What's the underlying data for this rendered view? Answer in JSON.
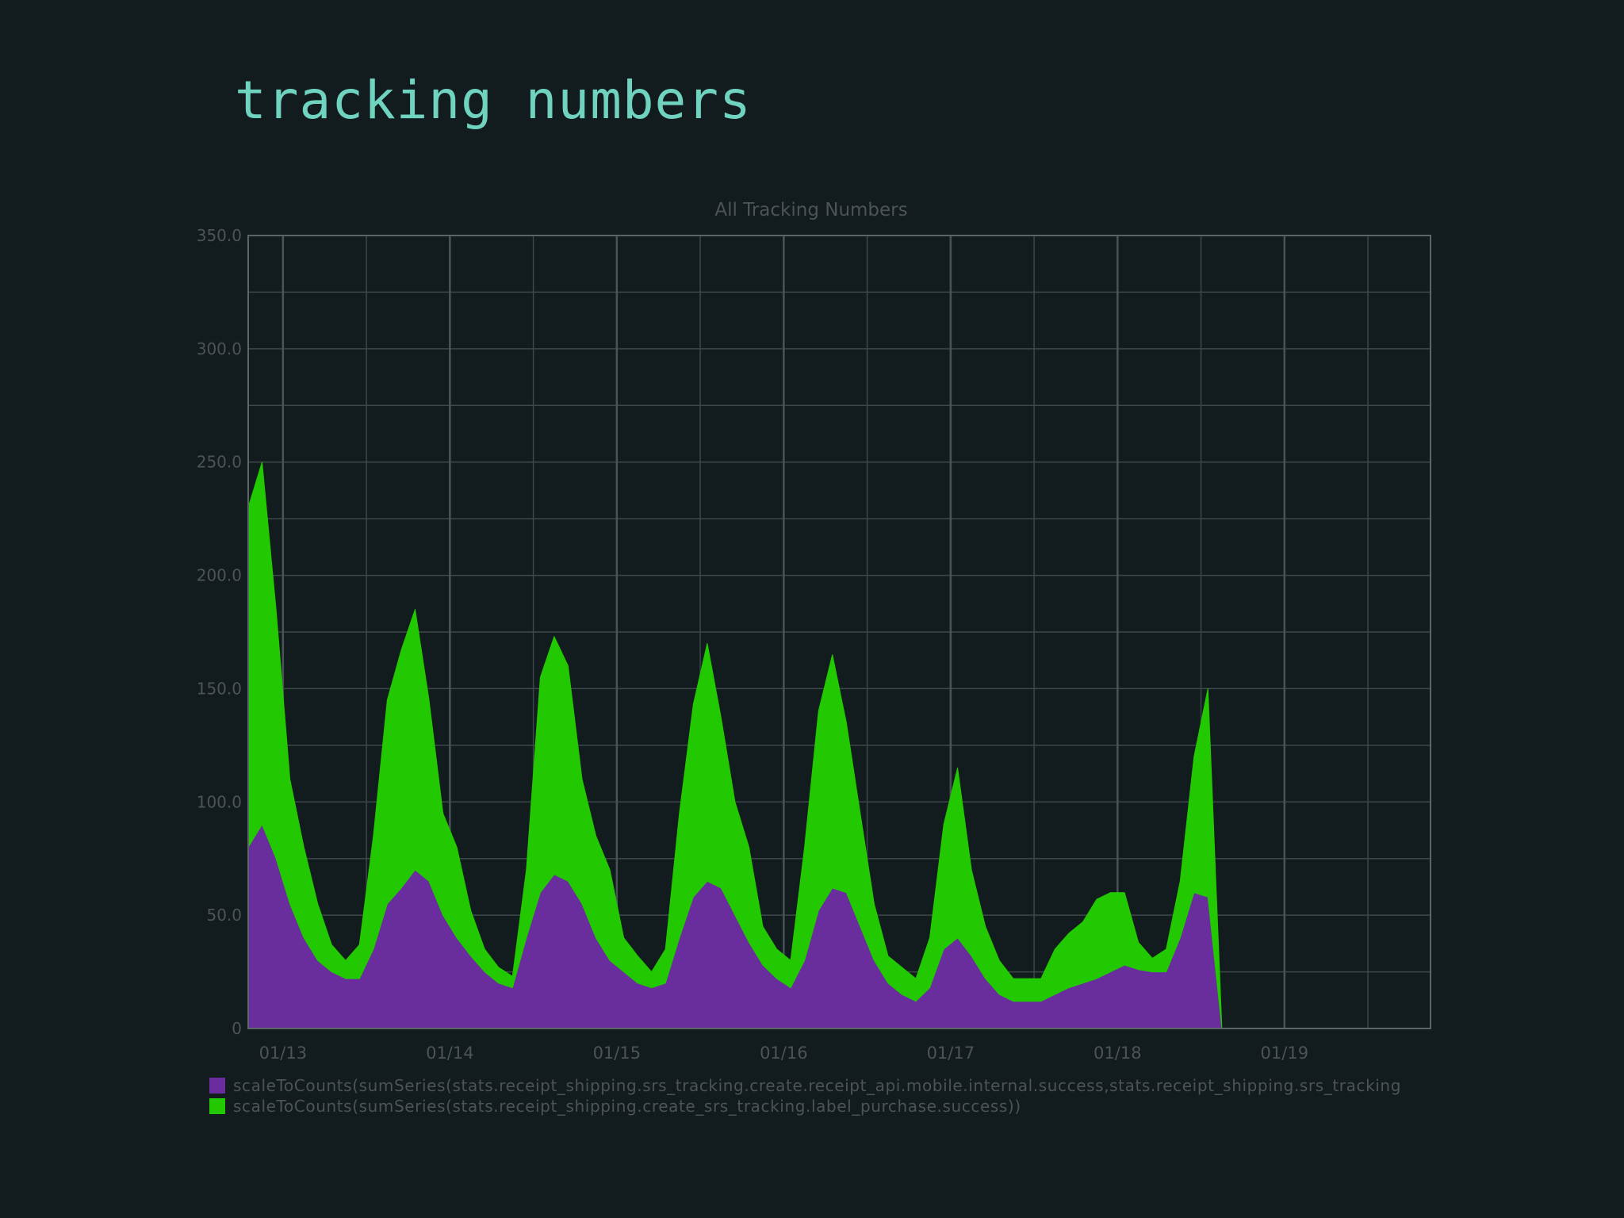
{
  "slide": {
    "title": "tracking numbers"
  },
  "chart_data": {
    "type": "area",
    "stacked": true,
    "title": "All Tracking Numbers",
    "xlabel": "",
    "ylabel": "",
    "x_ticks": [
      "01/13",
      "01/14",
      "01/15",
      "01/16",
      "01/17",
      "01/18",
      "01/19"
    ],
    "x_range": [
      "01/12 19:00",
      "01/19 21:00"
    ],
    "ylim": [
      0,
      350
    ],
    "y_ticks": [
      "0",
      "50.0",
      "100.0",
      "150.0",
      "200.0",
      "250.0",
      "300.0",
      "350.0"
    ],
    "grid": true,
    "legend_position": "bottom-left",
    "series": [
      {
        "name": "scaleToCounts(sumSeries(stats.receipt_shipping.srs_tracking.create.receipt_api.mobile.internal.success,stats.receipt_shipping.srs_tracking",
        "color": "#6a2d9e",
        "points": [
          [
            "01/12 19:00",
            80
          ],
          [
            "01/12 21:00",
            90
          ],
          [
            "01/12 23:00",
            75
          ],
          [
            "01/13 01:00",
            55
          ],
          [
            "01/13 03:00",
            40
          ],
          [
            "01/13 05:00",
            30
          ],
          [
            "01/13 07:00",
            25
          ],
          [
            "01/13 09:00",
            22
          ],
          [
            "01/13 11:00",
            22
          ],
          [
            "01/13 13:00",
            35
          ],
          [
            "01/13 15:00",
            55
          ],
          [
            "01/13 17:00",
            62
          ],
          [
            "01/13 19:00",
            70
          ],
          [
            "01/13 21:00",
            65
          ],
          [
            "01/13 23:00",
            50
          ],
          [
            "01/14 01:00",
            40
          ],
          [
            "01/14 03:00",
            32
          ],
          [
            "01/14 05:00",
            25
          ],
          [
            "01/14 07:00",
            20
          ],
          [
            "01/14 09:00",
            18
          ],
          [
            "01/14 11:00",
            40
          ],
          [
            "01/14 13:00",
            60
          ],
          [
            "01/14 15:00",
            68
          ],
          [
            "01/14 17:00",
            65
          ],
          [
            "01/14 19:00",
            55
          ],
          [
            "01/14 21:00",
            40
          ],
          [
            "01/14 23:00",
            30
          ],
          [
            "01/15 01:00",
            25
          ],
          [
            "01/15 03:00",
            20
          ],
          [
            "01/15 05:00",
            18
          ],
          [
            "01/15 07:00",
            20
          ],
          [
            "01/15 09:00",
            40
          ],
          [
            "01/15 11:00",
            58
          ],
          [
            "01/15 13:00",
            65
          ],
          [
            "01/15 15:00",
            62
          ],
          [
            "01/15 17:00",
            50
          ],
          [
            "01/15 19:00",
            38
          ],
          [
            "01/15 21:00",
            28
          ],
          [
            "01/15 23:00",
            22
          ],
          [
            "01/16 01:00",
            18
          ],
          [
            "01/16 03:00",
            30
          ],
          [
            "01/16 05:00",
            52
          ],
          [
            "01/16 07:00",
            62
          ],
          [
            "01/16 09:00",
            60
          ],
          [
            "01/16 11:00",
            45
          ],
          [
            "01/16 13:00",
            30
          ],
          [
            "01/16 15:00",
            20
          ],
          [
            "01/16 17:00",
            15
          ],
          [
            "01/16 19:00",
            12
          ],
          [
            "01/16 21:00",
            18
          ],
          [
            "01/16 23:00",
            35
          ],
          [
            "01/17 01:00",
            40
          ],
          [
            "01/17 03:00",
            32
          ],
          [
            "01/17 05:00",
            22
          ],
          [
            "01/17 07:00",
            15
          ],
          [
            "01/17 09:00",
            12
          ],
          [
            "01/17 11:00",
            12
          ],
          [
            "01/17 13:00",
            12
          ],
          [
            "01/17 15:00",
            15
          ],
          [
            "01/17 17:00",
            18
          ],
          [
            "01/17 19:00",
            20
          ],
          [
            "01/17 21:00",
            22
          ],
          [
            "01/17 23:00",
            25
          ],
          [
            "01/18 01:00",
            28
          ],
          [
            "01/18 03:00",
            26
          ],
          [
            "01/18 05:00",
            25
          ],
          [
            "01/18 07:00",
            25
          ],
          [
            "01/18 09:00",
            40
          ],
          [
            "01/18 11:00",
            60
          ],
          [
            "01/18 13:00",
            58
          ],
          [
            "01/18 15:00",
            0
          ]
        ]
      },
      {
        "name": "scaleToCounts(sumSeries(stats.receipt_shipping.create_srs_tracking.label_purchase.success))",
        "color": "#22c900",
        "points": [
          [
            "01/12 19:00",
            150
          ],
          [
            "01/12 21:00",
            160
          ],
          [
            "01/12 23:00",
            110
          ],
          [
            "01/13 01:00",
            55
          ],
          [
            "01/13 03:00",
            40
          ],
          [
            "01/13 05:00",
            25
          ],
          [
            "01/13 07:00",
            12
          ],
          [
            "01/13 09:00",
            8
          ],
          [
            "01/13 11:00",
            15
          ],
          [
            "01/13 13:00",
            50
          ],
          [
            "01/13 15:00",
            90
          ],
          [
            "01/13 17:00",
            105
          ],
          [
            "01/13 19:00",
            115
          ],
          [
            "01/13 21:00",
            80
          ],
          [
            "01/13 23:00",
            45
          ],
          [
            "01/14 01:00",
            40
          ],
          [
            "01/14 03:00",
            20
          ],
          [
            "01/14 05:00",
            10
          ],
          [
            "01/14 07:00",
            7
          ],
          [
            "01/14 09:00",
            5
          ],
          [
            "01/14 11:00",
            30
          ],
          [
            "01/14 13:00",
            95
          ],
          [
            "01/14 15:00",
            105
          ],
          [
            "01/14 17:00",
            95
          ],
          [
            "01/14 19:00",
            55
          ],
          [
            "01/14 21:00",
            45
          ],
          [
            "01/14 23:00",
            40
          ],
          [
            "01/15 01:00",
            15
          ],
          [
            "01/15 03:00",
            12
          ],
          [
            "01/15 05:00",
            7
          ],
          [
            "01/15 07:00",
            15
          ],
          [
            "01/15 09:00",
            55
          ],
          [
            "01/15 11:00",
            85
          ],
          [
            "01/15 13:00",
            105
          ],
          [
            "01/15 15:00",
            75
          ],
          [
            "01/15 17:00",
            50
          ],
          [
            "01/15 19:00",
            42
          ],
          [
            "01/15 21:00",
            17
          ],
          [
            "01/15 23:00",
            13
          ],
          [
            "01/16 01:00",
            12
          ],
          [
            "01/16 03:00",
            50
          ],
          [
            "01/16 05:00",
            88
          ],
          [
            "01/16 07:00",
            103
          ],
          [
            "01/16 09:00",
            75
          ],
          [
            "01/16 11:00",
            50
          ],
          [
            "01/16 13:00",
            25
          ],
          [
            "01/16 15:00",
            12
          ],
          [
            "01/16 17:00",
            12
          ],
          [
            "01/16 19:00",
            10
          ],
          [
            "01/16 21:00",
            22
          ],
          [
            "01/16 23:00",
            55
          ],
          [
            "01/17 01:00",
            75
          ],
          [
            "01/17 03:00",
            38
          ],
          [
            "01/17 05:00",
            23
          ],
          [
            "01/17 07:00",
            15
          ],
          [
            "01/17 09:00",
            10
          ],
          [
            "01/17 11:00",
            10
          ],
          [
            "01/17 13:00",
            10
          ],
          [
            "01/17 15:00",
            20
          ],
          [
            "01/17 17:00",
            24
          ],
          [
            "01/17 19:00",
            27
          ],
          [
            "01/17 21:00",
            35
          ],
          [
            "01/17 23:00",
            35
          ],
          [
            "01/18 01:00",
            32
          ],
          [
            "01/18 03:00",
            12
          ],
          [
            "01/18 05:00",
            6
          ],
          [
            "01/18 07:00",
            10
          ],
          [
            "01/18 09:00",
            25
          ],
          [
            "01/18 11:00",
            60
          ],
          [
            "01/18 13:00",
            92
          ],
          [
            "01/18 15:00",
            0
          ]
        ]
      }
    ]
  }
}
